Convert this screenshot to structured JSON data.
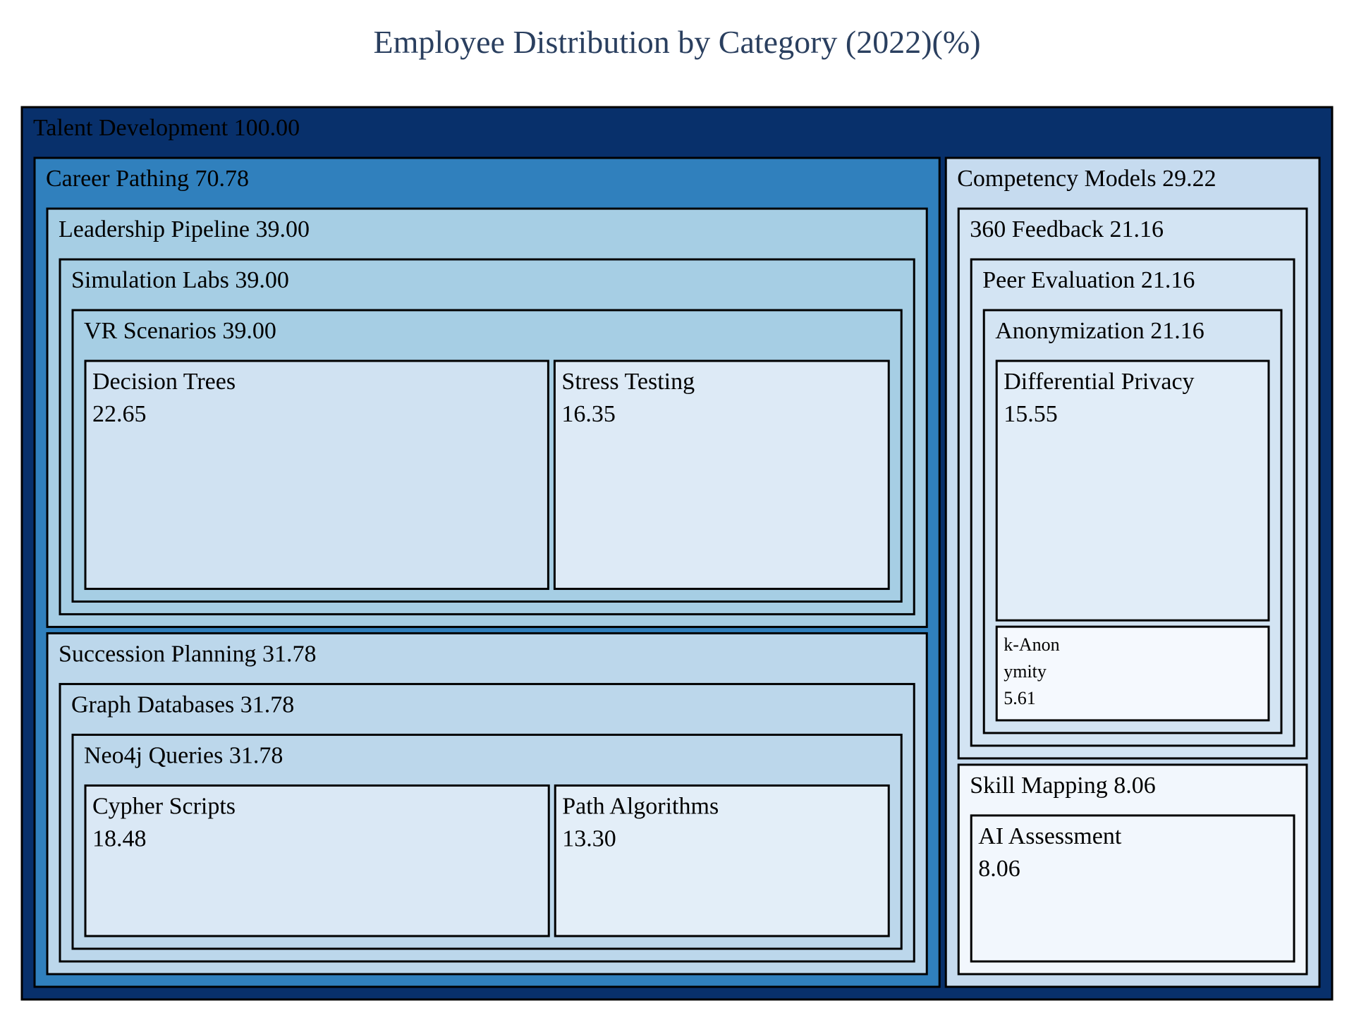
{
  "chart_title": "Employee Distribution by Category (2022)(%)",
  "chart_data": {
    "type": "treemap",
    "title": "Employee Distribution by Category (2022)(%)",
    "colors": {
      "root": "#08306b",
      "level1_large": "#3080bd",
      "level1_small": "#c6dbef",
      "border": "#000000"
    },
    "nodes": [
      {
        "id": "talent-development",
        "label": "Talent Development",
        "value": 100.0,
        "display": "100.00",
        "parent": "",
        "color": "#08306b"
      },
      {
        "id": "career-pathing",
        "label": "Career Pathing",
        "value": 70.78,
        "display": "70.78",
        "parent": "talent-development",
        "color": "#3080bd"
      },
      {
        "id": "competency-models",
        "label": "Competency Models",
        "value": 29.22,
        "display": "29.22",
        "parent": "talent-development",
        "color": "#c6dbef"
      },
      {
        "id": "leadership-pipeline",
        "label": "Leadership Pipeline",
        "value": 39.0,
        "display": "39.00",
        "parent": "career-pathing",
        "color": "#a6cee4"
      },
      {
        "id": "succession-planning",
        "label": "Succession Planning",
        "value": 31.78,
        "display": "31.78",
        "parent": "career-pathing",
        "color": "#bcd7eb"
      },
      {
        "id": "simulation-labs",
        "label": "Simulation Labs",
        "value": 39.0,
        "display": "39.00",
        "parent": "leadership-pipeline",
        "color": "#a6cee4"
      },
      {
        "id": "vr-scenarios",
        "label": "VR Scenarios",
        "value": 39.0,
        "display": "39.00",
        "parent": "simulation-labs",
        "color": "#a6cee4"
      },
      {
        "id": "decision-trees",
        "label": "Decision Trees",
        "value": 22.65,
        "display": "22.65",
        "parent": "vr-scenarios",
        "color": "#d0e2f2"
      },
      {
        "id": "stress-testing",
        "label": "Stress Testing",
        "value": 16.35,
        "display": "16.35",
        "parent": "vr-scenarios",
        "color": "#ddeaf6"
      },
      {
        "id": "graph-databases",
        "label": "Graph Databases",
        "value": 31.78,
        "display": "31.78",
        "parent": "succession-planning",
        "color": "#bcd7eb"
      },
      {
        "id": "neo4j-queries",
        "label": "Neo4j Queries",
        "value": 31.78,
        "display": "31.78",
        "parent": "graph-databases",
        "color": "#bcd7eb"
      },
      {
        "id": "cypher-scripts",
        "label": "Cypher Scripts",
        "value": 18.48,
        "display": "18.48",
        "parent": "neo4j-queries",
        "color": "#dae8f5"
      },
      {
        "id": "path-algorithms",
        "label": "Path Algorithms",
        "value": 13.3,
        "display": "13.30",
        "parent": "neo4j-queries",
        "color": "#e3eef8"
      },
      {
        "id": "360-feedback",
        "label": "360 Feedback",
        "value": 21.16,
        "display": "21.16",
        "parent": "competency-models",
        "color": "#d3e4f3"
      },
      {
        "id": "skill-mapping",
        "label": "Skill Mapping",
        "value": 8.06,
        "display": "8.06",
        "parent": "competency-models",
        "color": "#f2f7fd"
      },
      {
        "id": "peer-evaluation",
        "label": "Peer Evaluation",
        "value": 21.16,
        "display": "21.16",
        "parent": "360-feedback",
        "color": "#d3e4f3"
      },
      {
        "id": "anonymization",
        "label": "Anonymization",
        "value": 21.16,
        "display": "21.16",
        "parent": "peer-evaluation",
        "color": "#d3e4f3"
      },
      {
        "id": "differential-privacy",
        "label": "Differential Privacy",
        "value": 15.55,
        "display": "15.55",
        "parent": "anonymization",
        "color": "#e1edf8"
      },
      {
        "id": "k-anonymity",
        "label": "k-Anonymity",
        "value": 5.61,
        "display": "5.61",
        "parent": "anonymization",
        "color": "#f5f9fe",
        "label_lines": [
          "k-Anon",
          "ymity"
        ]
      },
      {
        "id": "ai-assessment",
        "label": "AI Assessment",
        "value": 8.06,
        "display": "8.06",
        "parent": "skill-mapping",
        "color": "#f2f7fd"
      }
    ]
  }
}
